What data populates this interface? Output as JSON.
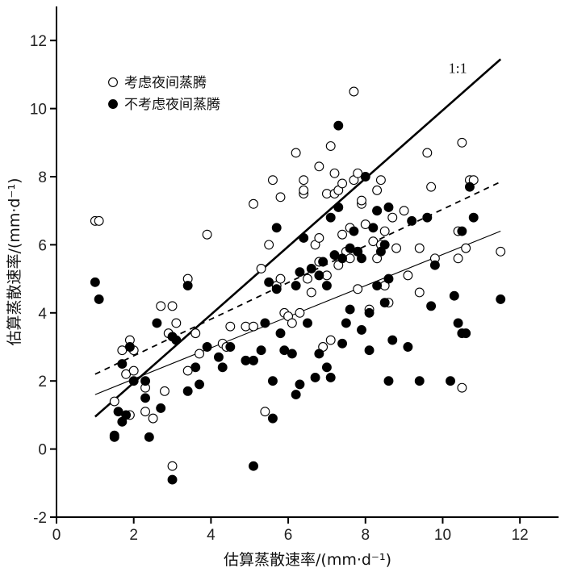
{
  "chart_data": {
    "type": "scatter",
    "xlabel": "估算蒸散速率/(mm·d⁻¹)",
    "ylabel": "估算蒸散速率/(mm·d⁻¹)",
    "xlim": [
      0,
      13
    ],
    "ylim": [
      -2,
      13
    ],
    "xticks": [
      0,
      2,
      4,
      6,
      8,
      10,
      12
    ],
    "yticks": [
      -2,
      0,
      2,
      4,
      6,
      8,
      10,
      12
    ],
    "grid": false,
    "legend_position": "top-left",
    "reference_label": "1:1",
    "series": [
      {
        "name": "考虑夜间蒸腾",
        "marker": "open-circle",
        "points": [
          [
            1.0,
            6.7
          ],
          [
            1.1,
            6.7
          ],
          [
            1.5,
            1.4
          ],
          [
            1.7,
            2.9
          ],
          [
            1.8,
            2.2
          ],
          [
            1.9,
            1.0
          ],
          [
            1.9,
            3.2
          ],
          [
            2.0,
            2.9
          ],
          [
            2.0,
            2.3
          ],
          [
            2.3,
            1.1
          ],
          [
            2.3,
            1.8
          ],
          [
            2.5,
            0.9
          ],
          [
            2.7,
            4.2
          ],
          [
            2.8,
            1.7
          ],
          [
            2.9,
            3.4
          ],
          [
            3.0,
            4.2
          ],
          [
            3.0,
            -0.5
          ],
          [
            3.1,
            3.7
          ],
          [
            3.4,
            5.0
          ],
          [
            3.4,
            2.3
          ],
          [
            3.6,
            3.4
          ],
          [
            3.7,
            2.8
          ],
          [
            3.9,
            6.3
          ],
          [
            4.3,
            3.1
          ],
          [
            4.4,
            3.0
          ],
          [
            4.5,
            3.6
          ],
          [
            4.9,
            3.6
          ],
          [
            5.1,
            3.6
          ],
          [
            5.1,
            7.2
          ],
          [
            5.3,
            5.3
          ],
          [
            5.4,
            1.1
          ],
          [
            5.5,
            6.0
          ],
          [
            5.6,
            7.9
          ],
          [
            5.7,
            4.8
          ],
          [
            5.8,
            7.4
          ],
          [
            5.8,
            5.0
          ],
          [
            5.9,
            4.0
          ],
          [
            6.0,
            3.9
          ],
          [
            6.1,
            3.7
          ],
          [
            6.2,
            8.7
          ],
          [
            6.3,
            4.0
          ],
          [
            6.4,
            7.9
          ],
          [
            6.4,
            7.5
          ],
          [
            6.4,
            7.6
          ],
          [
            6.5,
            5.0
          ],
          [
            6.6,
            4.6
          ],
          [
            6.7,
            6.0
          ],
          [
            6.8,
            8.3
          ],
          [
            6.8,
            6.2
          ],
          [
            6.8,
            5.5
          ],
          [
            6.9,
            3.0
          ],
          [
            7.0,
            7.5
          ],
          [
            7.0,
            5.1
          ],
          [
            7.1,
            3.2
          ],
          [
            7.1,
            8.9
          ],
          [
            7.2,
            7.5
          ],
          [
            7.2,
            8.1
          ],
          [
            7.3,
            7.6
          ],
          [
            7.3,
            5.4
          ],
          [
            7.4,
            7.8
          ],
          [
            7.4,
            6.3
          ],
          [
            7.5,
            5.8
          ],
          [
            7.6,
            5.6
          ],
          [
            7.6,
            6.5
          ],
          [
            7.7,
            7.9
          ],
          [
            7.7,
            10.5
          ],
          [
            7.8,
            8.1
          ],
          [
            7.8,
            5.8
          ],
          [
            7.8,
            4.7
          ],
          [
            7.9,
            7.2
          ],
          [
            7.9,
            7.3
          ],
          [
            8.0,
            6.6
          ],
          [
            8.1,
            4.1
          ],
          [
            8.2,
            6.1
          ],
          [
            8.3,
            7.0
          ],
          [
            8.3,
            7.6
          ],
          [
            8.3,
            5.6
          ],
          [
            8.4,
            7.9
          ],
          [
            8.4,
            6.0
          ],
          [
            8.5,
            6.4
          ],
          [
            8.5,
            4.8
          ],
          [
            8.6,
            4.3
          ],
          [
            8.7,
            6.8
          ],
          [
            8.8,
            5.9
          ],
          [
            9.0,
            7.0
          ],
          [
            9.1,
            5.1
          ],
          [
            9.4,
            5.9
          ],
          [
            9.4,
            4.6
          ],
          [
            9.6,
            8.7
          ],
          [
            9.7,
            7.7
          ],
          [
            9.8,
            5.6
          ],
          [
            10.4,
            6.4
          ],
          [
            10.4,
            5.6
          ],
          [
            10.5,
            9.0
          ],
          [
            10.5,
            1.8
          ],
          [
            10.6,
            5.9
          ],
          [
            10.7,
            7.9
          ],
          [
            10.8,
            7.9
          ],
          [
            11.5,
            5.8
          ]
        ]
      },
      {
        "name": "不考虑夜间蒸腾",
        "marker": "filled-circle",
        "points": [
          [
            1.0,
            4.9
          ],
          [
            1.1,
            4.4
          ],
          [
            1.5,
            0.4
          ],
          [
            1.5,
            0.35
          ],
          [
            1.6,
            1.1
          ],
          [
            1.7,
            2.5
          ],
          [
            1.7,
            0.8
          ],
          [
            1.8,
            1.0
          ],
          [
            1.9,
            3.0
          ],
          [
            2.0,
            2.0
          ],
          [
            2.3,
            1.5
          ],
          [
            2.3,
            2.0
          ],
          [
            2.4,
            0.35
          ],
          [
            2.6,
            3.7
          ],
          [
            2.7,
            1.2
          ],
          [
            3.0,
            3.3
          ],
          [
            3.0,
            -0.9
          ],
          [
            3.1,
            3.2
          ],
          [
            3.4,
            4.8
          ],
          [
            3.4,
            1.7
          ],
          [
            3.6,
            2.4
          ],
          [
            3.7,
            1.9
          ],
          [
            3.9,
            3.0
          ],
          [
            4.2,
            2.7
          ],
          [
            4.3,
            2.4
          ],
          [
            4.5,
            3.0
          ],
          [
            4.9,
            2.6
          ],
          [
            5.1,
            2.6
          ],
          [
            5.1,
            -0.5
          ],
          [
            5.3,
            2.9
          ],
          [
            5.4,
            3.7
          ],
          [
            5.5,
            4.9
          ],
          [
            5.6,
            0.9
          ],
          [
            5.6,
            2.0
          ],
          [
            5.7,
            6.5
          ],
          [
            5.7,
            4.7
          ],
          [
            5.8,
            3.4
          ],
          [
            5.9,
            2.9
          ],
          [
            6.1,
            2.8
          ],
          [
            6.2,
            1.6
          ],
          [
            6.2,
            4.8
          ],
          [
            6.3,
            1.9
          ],
          [
            6.3,
            5.2
          ],
          [
            6.4,
            6.2
          ],
          [
            6.5,
            3.7
          ],
          [
            6.6,
            5.3
          ],
          [
            6.7,
            2.1
          ],
          [
            6.8,
            5.1
          ],
          [
            6.8,
            2.8
          ],
          [
            6.9,
            5.5
          ],
          [
            7.0,
            2.4
          ],
          [
            7.0,
            4.8
          ],
          [
            7.1,
            2.1
          ],
          [
            7.1,
            6.8
          ],
          [
            7.2,
            5.7
          ],
          [
            7.3,
            9.5
          ],
          [
            7.3,
            7.1
          ],
          [
            7.4,
            3.1
          ],
          [
            7.4,
            5.6
          ],
          [
            7.5,
            3.7
          ],
          [
            7.6,
            4.1
          ],
          [
            7.6,
            5.9
          ],
          [
            7.7,
            6.4
          ],
          [
            7.8,
            5.8
          ],
          [
            7.9,
            3.5
          ],
          [
            7.9,
            5.6
          ],
          [
            8.0,
            8.0
          ],
          [
            8.1,
            2.9
          ],
          [
            8.1,
            4.0
          ],
          [
            8.2,
            6.5
          ],
          [
            8.3,
            4.8
          ],
          [
            8.3,
            7.0
          ],
          [
            8.4,
            5.8
          ],
          [
            8.5,
            4.3
          ],
          [
            8.5,
            6.0
          ],
          [
            8.6,
            7.1
          ],
          [
            8.6,
            2.0
          ],
          [
            8.6,
            5.0
          ],
          [
            8.7,
            3.2
          ],
          [
            9.1,
            3.0
          ],
          [
            9.2,
            6.7
          ],
          [
            9.4,
            2.0
          ],
          [
            9.6,
            6.8
          ],
          [
            9.7,
            4.2
          ],
          [
            9.8,
            5.4
          ],
          [
            10.2,
            2.0
          ],
          [
            10.3,
            4.5
          ],
          [
            10.4,
            3.7
          ],
          [
            10.5,
            6.4
          ],
          [
            10.5,
            3.4
          ],
          [
            10.6,
            3.4
          ],
          [
            10.7,
            7.7
          ],
          [
            10.8,
            6.8
          ],
          [
            11.5,
            4.4
          ]
        ]
      }
    ],
    "lines": [
      {
        "label": "1:1",
        "style": "solid-thick",
        "x": [
          1.0,
          11.5
        ],
        "y": [
          0.95,
          11.45
        ]
      },
      {
        "label": "",
        "style": "dashed",
        "x": [
          1.0,
          11.5
        ],
        "y": [
          2.2,
          7.85
        ]
      },
      {
        "label": "",
        "style": "solid-thin",
        "x": [
          1.0,
          11.5
        ],
        "y": [
          1.6,
          6.4
        ]
      }
    ]
  }
}
